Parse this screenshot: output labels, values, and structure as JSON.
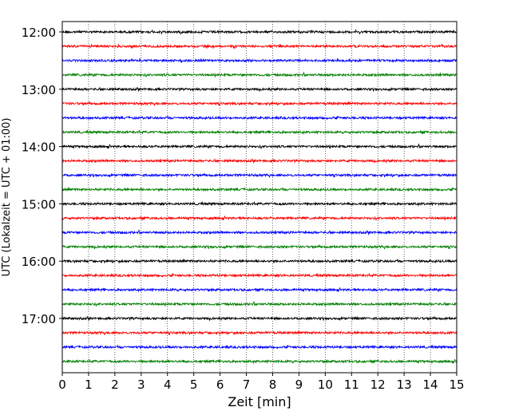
{
  "chart_data": {
    "type": "line",
    "title": "",
    "xlabel": "Zeit  [min]",
    "ylabel": "UTC (Lokalzeit = UTC + 01:00)",
    "xlim": [
      0,
      15
    ],
    "x_ticks": [
      0,
      1,
      2,
      3,
      4,
      5,
      6,
      7,
      8,
      9,
      10,
      11,
      12,
      13,
      14,
      15
    ],
    "y_tick_labels": [
      "12:00",
      "13:00",
      "14:00",
      "15:00",
      "16:00",
      "17:00"
    ],
    "trace_interval_min": 15,
    "trace_start": "12:00",
    "trace_count": 24,
    "trace_color_cycle": [
      "#000000",
      "#ff0000",
      "#0000ff",
      "#008000"
    ],
    "vertical_grid": true,
    "grid_style": "dotted"
  }
}
